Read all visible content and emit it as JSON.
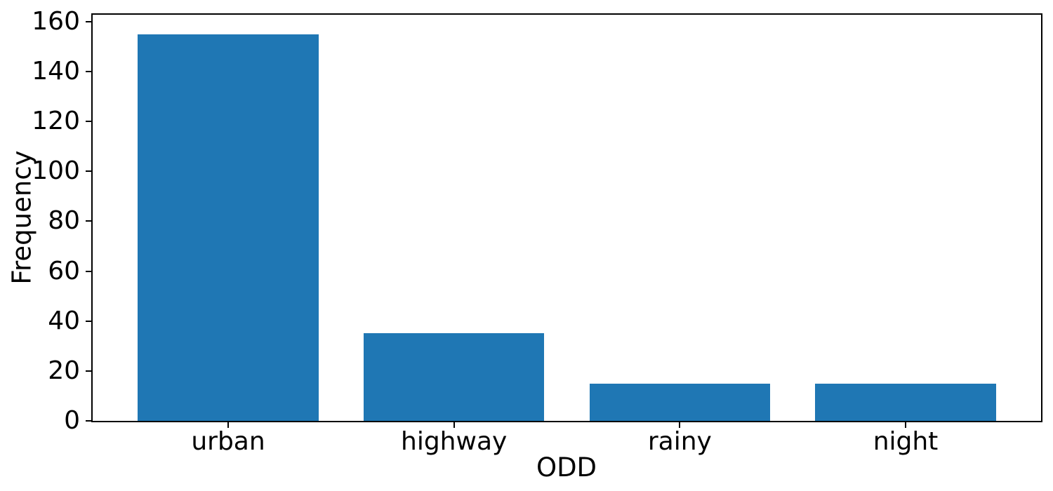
{
  "chart_data": {
    "type": "bar",
    "categories": [
      "urban",
      "highway",
      "rainy",
      "night"
    ],
    "values": [
      155,
      35,
      15,
      15
    ],
    "title": "",
    "xlabel": "ODD",
    "ylabel": "Frequency",
    "yticks": [
      0,
      20,
      40,
      60,
      80,
      100,
      120,
      140,
      160
    ],
    "ylim": [
      0,
      162.75
    ],
    "xlim": [
      -0.6,
      3.6
    ],
    "bar_width_fraction": 0.8,
    "bar_color": "#1f77b4",
    "axis_color": "#000000",
    "background_color": "#ffffff",
    "grid": false,
    "legend": null
  }
}
